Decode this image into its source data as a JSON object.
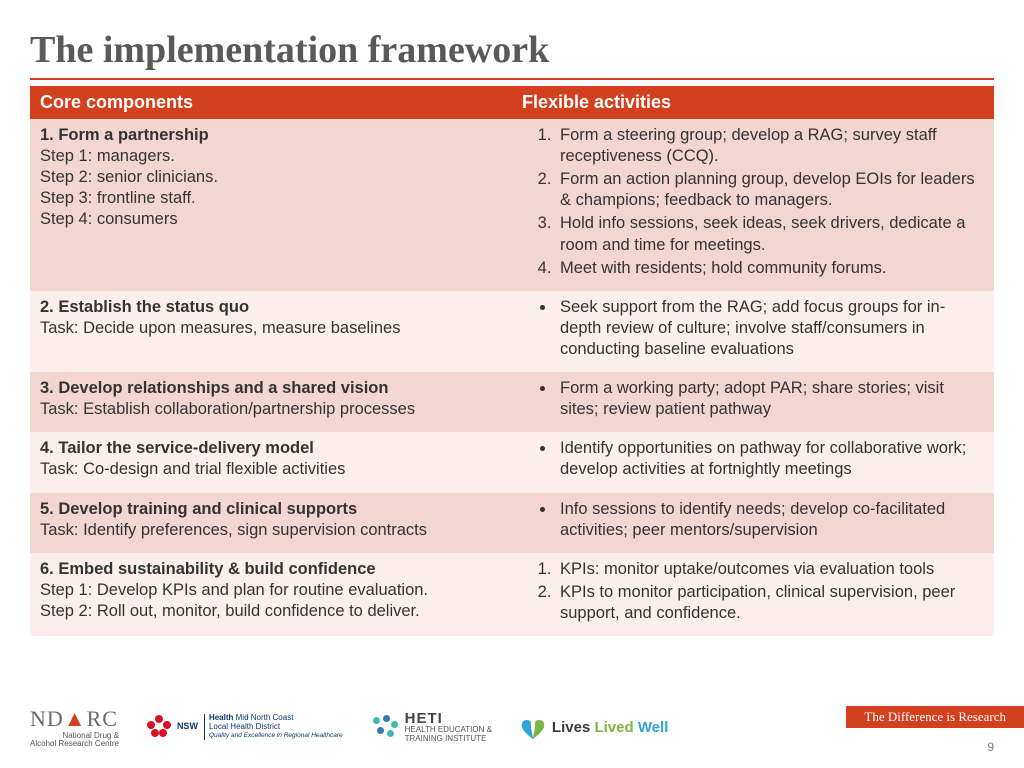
{
  "title": "The implementation framework",
  "colors": {
    "accent": "#d2401e",
    "title_text": "#595959",
    "body_text": "#333333",
    "row_dark": "#f3d6cf",
    "row_light": "#fbefec",
    "background": "#ffffff"
  },
  "typography": {
    "title_family": "Georgia",
    "title_size_pt": 30,
    "body_family": "Arial",
    "body_size_pt": 13
  },
  "table": {
    "type": "table",
    "col_widths_pct": [
      50,
      50
    ],
    "header": {
      "core": "Core components",
      "flex": "Flexible activities"
    },
    "header_bg": "#d2401e",
    "header_fg": "#ffffff",
    "rows": [
      {
        "shade": "dark",
        "core": {
          "title": "1. Form a partnership",
          "lines": [
            "Step 1: managers.",
            "Step 2: senior clinicians.",
            "Step 3: frontline staff.",
            "Step 4: consumers"
          ]
        },
        "flex": {
          "list_type": "ol",
          "items": [
            "Form a steering group; develop a RAG;  survey staff receptiveness (CCQ).",
            "Form an action planning group, develop EOIs for leaders & champions; feedback to managers.",
            "Hold info sessions, seek ideas, seek drivers, dedicate a room and time for meetings.",
            "Meet with residents; hold community forums."
          ]
        }
      },
      {
        "shade": "light",
        "core": {
          "title": "2. Establish the status quo",
          "lines": [
            "Task: Decide upon measures, measure baselines"
          ]
        },
        "flex": {
          "list_type": "ul",
          "items": [
            "Seek support from the RAG; add focus groups for in-depth review of culture; involve staff/consumers in conducting baseline evaluations"
          ]
        }
      },
      {
        "shade": "dark",
        "core": {
          "title": "3. Develop relationships and a shared vision",
          "lines": [
            "Task: Establish collaboration/partnership processes"
          ]
        },
        "flex": {
          "list_type": "ul",
          "items": [
            "Form a working party; adopt PAR; share stories; visit sites; review patient pathway"
          ]
        }
      },
      {
        "shade": "light",
        "core": {
          "title": "4. Tailor the service-delivery model",
          "lines": [
            "Task: Co-design and trial flexible activities"
          ]
        },
        "flex": {
          "list_type": "ul",
          "items": [
            "Identify opportunities on pathway for collaborative work; develop activities at fortnightly meetings"
          ]
        }
      },
      {
        "shade": "dark",
        "core": {
          "title": "5. Develop training and clinical supports",
          "lines": [
            "Task: Identify preferences, sign supervision contracts"
          ]
        },
        "flex": {
          "list_type": "ul",
          "items": [
            "Info sessions to identify needs; develop co-facilitated activities; peer mentors/supervision"
          ]
        }
      },
      {
        "shade": "light",
        "core": {
          "title": "6. Embed sustainability & build confidence",
          "lines": [
            "Step 1: Develop KPIs and plan for routine evaluation.",
            "Step 2: Roll out, monitor, build confidence to deliver."
          ]
        },
        "flex": {
          "list_type": "ol",
          "items": [
            "KPIs: monitor uptake/outcomes via evaluation tools",
            "KPIs to monitor participation, clinical supervision, peer support, and confidence."
          ]
        }
      }
    ]
  },
  "footer": {
    "ndarc": {
      "text": "NDARC",
      "sub1": "National Drug &",
      "sub2": "Alcohol Research Centre"
    },
    "nsw": {
      "l1": "Health",
      "l2": "Mid North Coast",
      "l3": "Local Health District",
      "l4": "Quality and Excellence in Regional Healthcare"
    },
    "heti": {
      "big": "HETI",
      "l1": "HEALTH EDUCATION &",
      "l2": "TRAINING INSTITUTE"
    },
    "llw": {
      "w1": "Lives ",
      "w2": "Lived ",
      "w3": "Well",
      "c1": "#3a3a3a",
      "c2": "#7bb542",
      "c3": "#2fa4d6"
    },
    "tagline": "The Difference is Research",
    "page": "9"
  }
}
